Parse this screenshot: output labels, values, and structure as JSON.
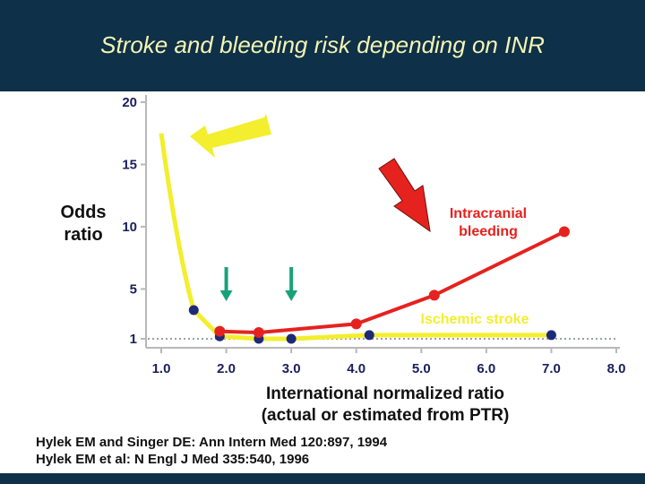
{
  "slide": {
    "title": "Stroke and bleeding risk depending on INR"
  },
  "chart_data": {
    "type": "line",
    "ylabel": [
      "Odds",
      "ratio"
    ],
    "xlabel": [
      "International normalized ratio",
      "(actual or estimated from PTR)"
    ],
    "xlim": [
      1.0,
      8.0
    ],
    "ylim": [
      0,
      20
    ],
    "x_ticks": [
      "1.0",
      "2.0",
      "3.0",
      "4.0",
      "5.0",
      "6.0",
      "7.0",
      "8.0"
    ],
    "y_ticks": [
      "1",
      "5",
      "10",
      "15",
      "20"
    ],
    "grid": false,
    "reference_line": 1,
    "series": [
      {
        "name": "Ischemic stroke",
        "color": "#f3ee2e",
        "marker_color": "#1d2a78",
        "x": [
          1.5,
          1.9,
          2.5,
          3.0,
          4.2,
          7.0
        ],
        "y": [
          3.3,
          1.2,
          1.0,
          1.0,
          1.3,
          1.3
        ],
        "curve_start": {
          "x": 1.0,
          "y": 17.5
        }
      },
      {
        "name": "Intracranial bleeding",
        "color": "#e5221e",
        "marker_color": "#e5221e",
        "x": [
          1.9,
          2.5,
          4.0,
          5.2,
          7.2
        ],
        "y": [
          1.6,
          1.5,
          2.2,
          4.5,
          9.6
        ]
      }
    ],
    "annotations": {
      "yellow_arrow": "pointing at high stroke risk at low INR",
      "red_arrow": "pointing at rising bleeding curve",
      "green_arrows_x": [
        2.0,
        3.0
      ]
    }
  },
  "references": [
    "Hylek EM and Singer DE: Ann Intern Med 120:897, 1994",
    "Hylek EM et al: N Engl J Med 335:540, 1996"
  ]
}
